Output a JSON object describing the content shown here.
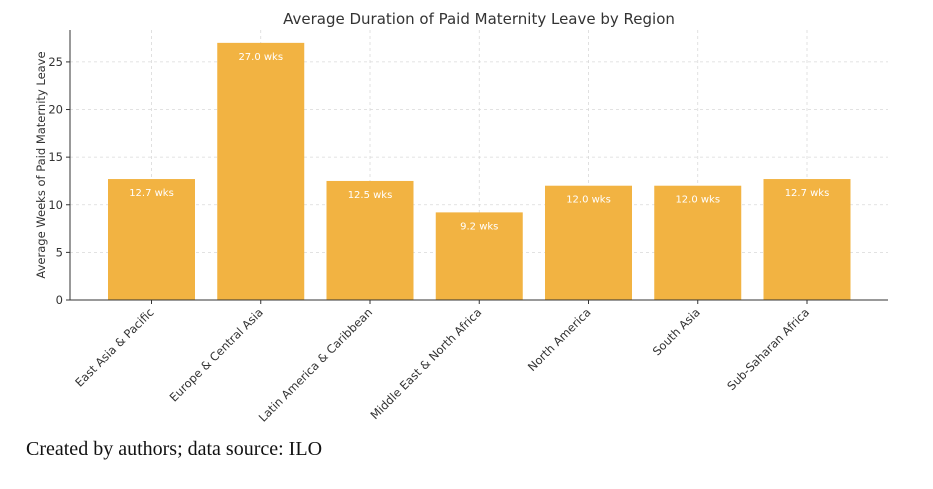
{
  "chart_data": {
    "type": "bar",
    "title": "Average Duration of Paid Maternity Leave by Region",
    "xlabel": "",
    "ylabel": "Average Weeks of Paid Maternity Leave",
    "categories": [
      "East Asia & Pacific",
      "Europe & Central Asia",
      "Latin America & Caribbean",
      "Middle East & North Africa",
      "North America",
      "South Asia",
      "Sub-Saharan Africa"
    ],
    "values": [
      12.7,
      27.0,
      12.5,
      9.2,
      12.0,
      12.0,
      12.7
    ],
    "data_labels": [
      "12.7 wks",
      "27.0 wks",
      "12.5 wks",
      "9.2 wks",
      "12.0 wks",
      "12.0 wks",
      "12.7 wks"
    ],
    "ylim": [
      0,
      28.35
    ],
    "yticks": [
      0,
      5,
      10,
      15,
      20,
      25
    ],
    "grid": true,
    "bar_color": "#f2b342",
    "axis_color": "#333333",
    "grid_color": "#d9d9d9"
  },
  "caption": "Created by authors; data source: ILO"
}
